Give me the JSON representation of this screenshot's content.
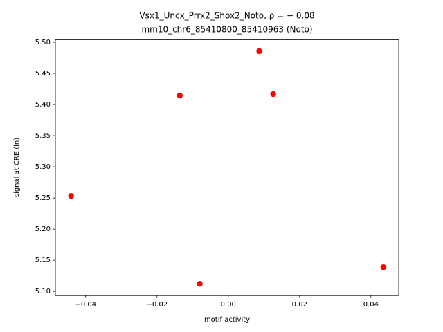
{
  "chart_data": {
    "type": "scatter",
    "title": "Vsx1_Uncx_Prrx2_Shox2_Noto, ρ = − 0.08",
    "subtitle": "mm10_chr6_85410800_85410963 (Noto)",
    "x_label": "motif activity",
    "y_label": "signal at CRE (ln)",
    "series": [
      {
        "color": "#ff0000",
        "x": [
          -0.0441,
          -0.0136,
          -0.008,
          0.0087,
          0.0126,
          0.0435
        ],
        "values": [
          5.2533,
          5.4144,
          5.1122,
          5.4856,
          5.4167,
          5.1389
        ]
      }
    ],
    "xlim": [
      -0.0485,
      0.0478
    ],
    "ylim": [
      5.0933,
      5.5038
    ],
    "xticks": [
      {
        "value": -0.04,
        "label": "−0.04"
      },
      {
        "value": -0.02,
        "label": "−0.02"
      },
      {
        "value": 0,
        "label": "0.00"
      },
      0.02,
      0.04
    ],
    "yticks": [
      {
        "value": 5.1,
        "label": "5.10"
      },
      5.15,
      {
        "value": 5.2,
        "label": "5.20"
      },
      5.25,
      {
        "value": 5.3,
        "label": "5.30"
      },
      5.35,
      {
        "value": 5.4,
        "label": "5.40"
      },
      5.45,
      {
        "value": 5.5,
        "label": "5.50"
      }
    ],
    "grid": false
  }
}
